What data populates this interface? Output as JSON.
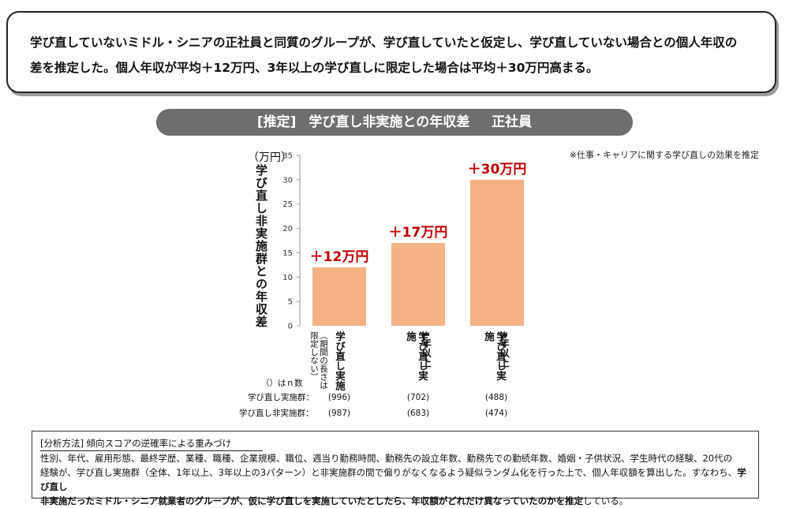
{
  "summary": {
    "line1": "学び直していないミドル・シニアの正社員と同質のグループが、学び直していたと仮定し、学び直していない場合との個人年収の",
    "line2": "差を推定した。個人年収が平均＋12万円、3年以上の学び直しに限定した場合は平均＋30万円高まる。"
  },
  "chart_title": {
    "prefix": "[推定]",
    "main": "学び直し非実施との年収差",
    "suffix": "正社員"
  },
  "note": "※仕事・キャリアに関する学び直しの効果を推定",
  "chart_data": {
    "type": "bar",
    "unit_label": "（万円）",
    "ylabel": "学び直し非実施群との年収差",
    "ylim": [
      0,
      35
    ],
    "yticks": [
      0,
      5,
      10,
      15,
      20,
      25,
      30,
      35
    ],
    "categories": [
      "学び直し実施",
      "学び直し実施 1年以上",
      "学び直し実施 3年以上"
    ],
    "category_sub": [
      "（期間の長さは限定しない）",
      "1年以上",
      "3年以上"
    ],
    "values": [
      12,
      17,
      30
    ],
    "data_labels": [
      "＋12万円",
      "＋17万円",
      "＋30万円"
    ],
    "bar_color": "#f4b183",
    "label_color": "#c00000"
  },
  "n_table": {
    "caption": "（）はｎ数",
    "rows": [
      {
        "label": "学び直し実施群：",
        "values": [
          "(996)",
          "(702)",
          "(488)"
        ]
      },
      {
        "label": "学び直し非実施群：",
        "values": [
          "(987)",
          "(683)",
          "(474)"
        ]
      }
    ]
  },
  "method": {
    "title": "[分析方法] 傾向スコアの逆確率による重みづけ",
    "line1": "性別、年代、雇用形態、最終学歴、業種、職種、企業規模、職位、週当り勤務時間、勤務先の設立年数、勤務先での勤続年数、婚姻・子供状況、学生時代の経験、20代の",
    "line2a": "経験が、学び直し実施群（全体、1年以上、3年以上の3パターン）と非実施群の間で偏りがなくなるよう疑似ランダム化を行った上で、個人年収額を算出した。すなわち、",
    "line2b": "学び直し",
    "line3a": "非実施だったミドル・シニア就業者のグループが、仮に学び直しを実施していたとしたら、年収額がどれだけ異なっていたのかを推定",
    "line3b": "している。"
  }
}
